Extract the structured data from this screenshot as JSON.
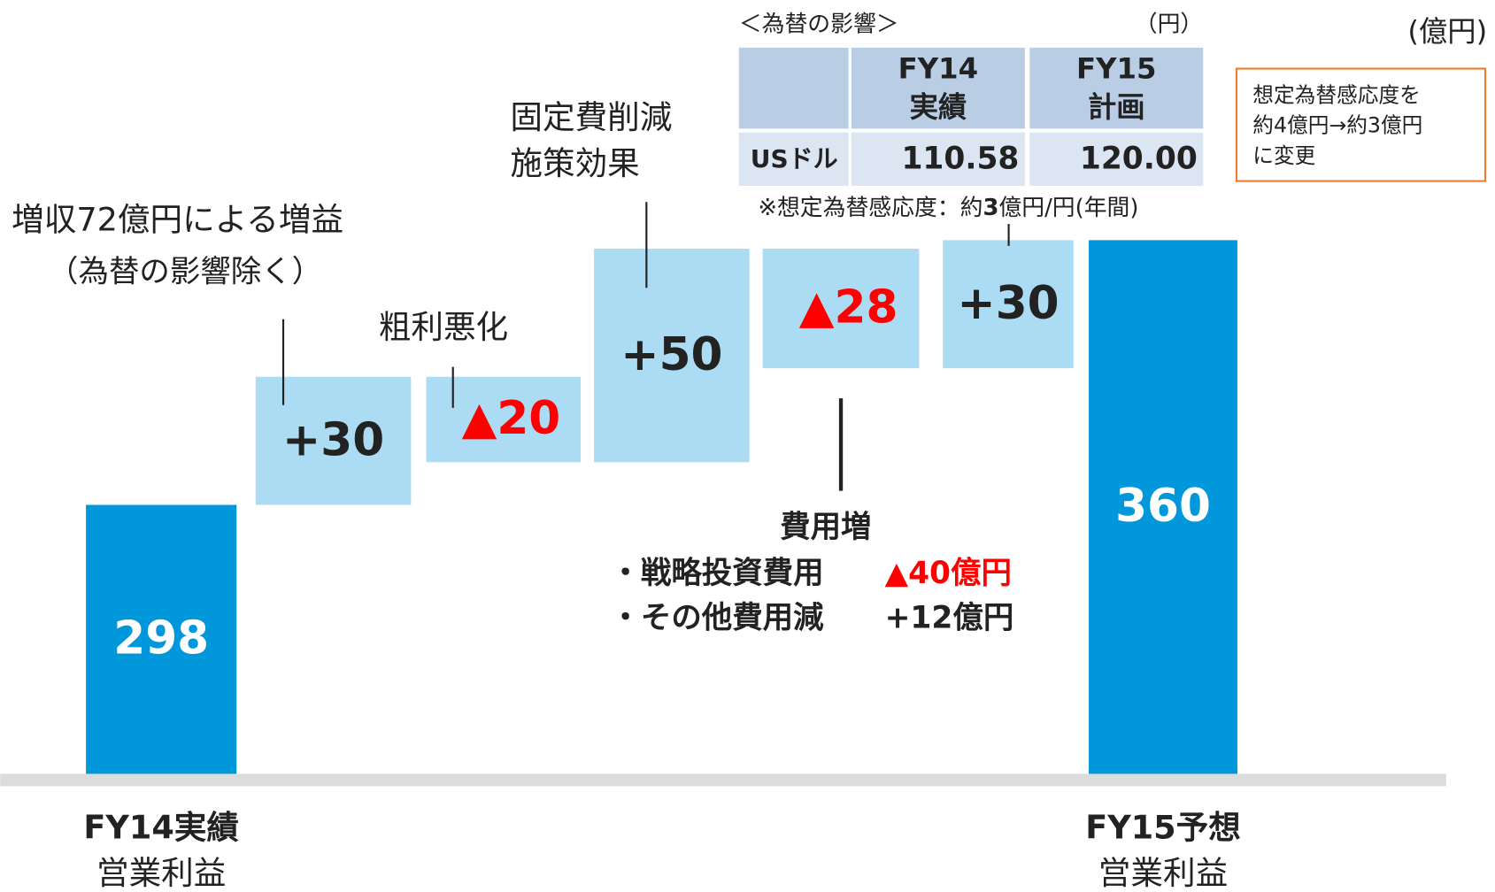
{
  "chart_data": {
    "type": "waterfall",
    "unit": "(億円)",
    "categories": [
      "FY14実績",
      null,
      null,
      null,
      null,
      null,
      "FY15予想"
    ],
    "category_subtitles": [
      "営業利益",
      null,
      null,
      null,
      null,
      null,
      "営業利益"
    ],
    "measure": [
      "absolute",
      "relative",
      "relative",
      "relative",
      "relative",
      "relative",
      "absolute"
    ],
    "values": [
      298,
      30,
      -20,
      50,
      -28,
      30,
      360
    ],
    "value_labels": [
      "298",
      "+30",
      "▲20",
      "+50",
      "▲28",
      "+30",
      "360"
    ],
    "total_color": "#0097db",
    "delta_color": "#abdcf4",
    "negative_label_color": "#ff0000",
    "ylim": [
      235,
      410
    ],
    "annotations": [
      {
        "lines": [
          "増収72億円による増益",
          "（為替の影響除く）"
        ]
      },
      {
        "lines": [
          "粗利悪化"
        ]
      },
      {
        "lines": [
          "固定費削減",
          "施策効果"
        ]
      },
      {
        "title": "費用増",
        "items": [
          {
            "label": "・戦略投資費用",
            "value": "▲40億円",
            "color": "#ff0000"
          },
          {
            "label": "・その他費用減",
            "value": "+12億円",
            "color": "#222222"
          }
        ]
      },
      {
        "parts": [
          "※想定為替感応度：約",
          "3",
          "億円/円(年間)"
        ]
      }
    ],
    "fx_table": {
      "title": "＜為替の影響＞",
      "unit": "（円）",
      "columns": [
        [
          "FY14",
          "実績"
        ],
        [
          "FY15",
          "計画"
        ]
      ],
      "rows": [
        {
          "label": "USドル",
          "values": [
            "110.58",
            "120.00"
          ]
        }
      ]
    },
    "note_box": {
      "lines": [
        "想定為替感応度を",
        "約4億円→約3億円",
        "に変更"
      ],
      "border_color": "#ed7d31"
    }
  }
}
